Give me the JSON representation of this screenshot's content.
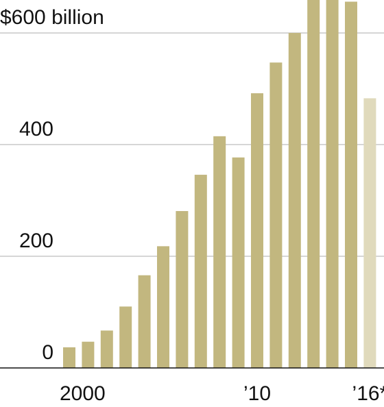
{
  "chart_data": {
    "type": "bar",
    "categories": [
      "2000",
      null,
      null,
      null,
      null,
      null,
      null,
      null,
      null,
      null,
      "’10",
      null,
      null,
      null,
      null,
      null,
      "’16*"
    ],
    "values": [
      37,
      47,
      67,
      110,
      166,
      218,
      281,
      346,
      415,
      377,
      492,
      547,
      600,
      675,
      680,
      656,
      483
    ],
    "colors": [
      "#c2b77f",
      "#c2b77f",
      "#c2b77f",
      "#c2b77f",
      "#c2b77f",
      "#c2b77f",
      "#c2b77f",
      "#c2b77f",
      "#c2b77f",
      "#c2b77f",
      "#c2b77f",
      "#c2b77f",
      "#c2b77f",
      "#c2b77f",
      "#c2b77f",
      "#c2b77f",
      "#e0dabc"
    ],
    "ylim": [
      0,
      659
    ],
    "yticks": [
      0,
      200,
      400,
      {
        "value": 600,
        "label": "$600 billion"
      }
    ],
    "grid": true
  }
}
